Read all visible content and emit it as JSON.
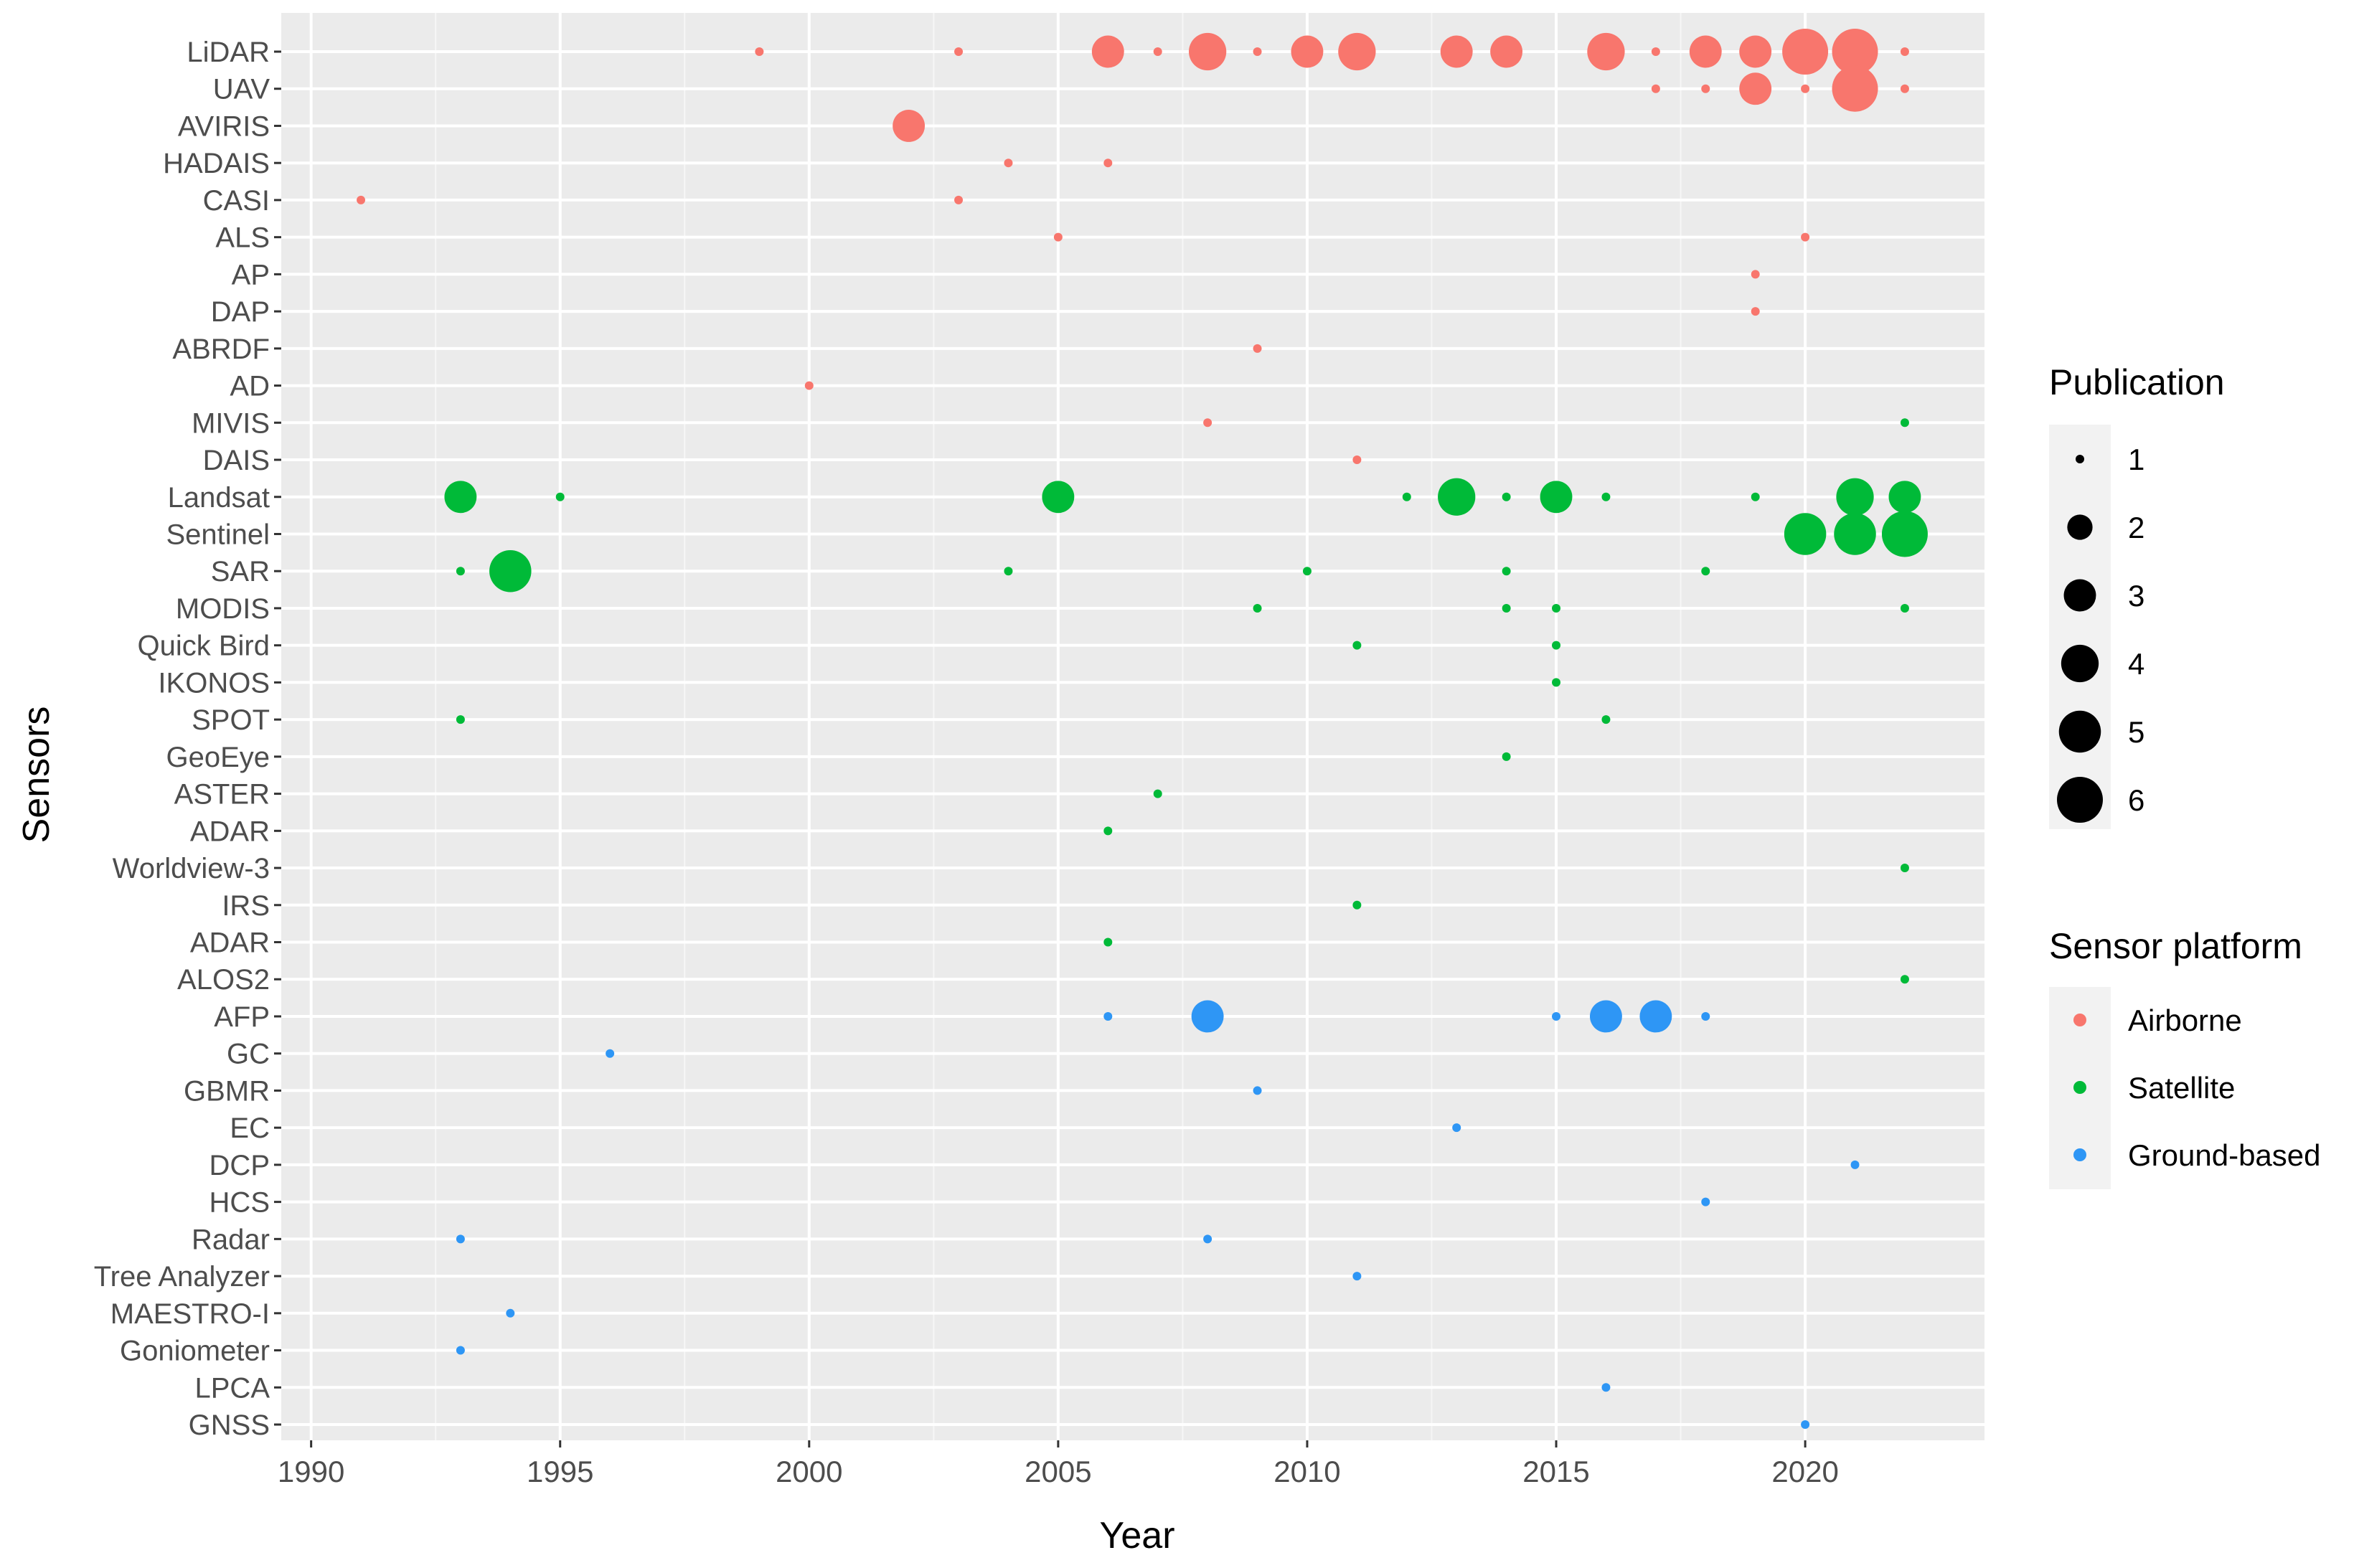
{
  "chart_data": {
    "type": "scatter",
    "xlabel": "Year",
    "ylabel": "Sensors",
    "xlim": [
      1989.4,
      2023.6
    ],
    "x_ticks": [
      1990,
      1995,
      2000,
      2005,
      2010,
      2015,
      2020
    ],
    "x_tick_labels": [
      "1990",
      "1995",
      "2000",
      "2005",
      "2010",
      "2015",
      "2020"
    ],
    "sensors": [
      "LiDAR",
      "UAV",
      "AVIRIS",
      "HADAIS",
      "CASI",
      "ALS",
      "AP",
      "DAP",
      "ABRDF",
      "AD",
      "MIVIS",
      "DAIS",
      "Landsat",
      "Sentinel",
      "SAR",
      "MODIS",
      "Quick Bird",
      "IKONOS",
      "SPOT",
      "GeoEye",
      "ASTER",
      "ADAR",
      "Worldview-3",
      "IRS",
      "ADAR",
      "ALOS2",
      "AFP",
      "GC",
      "GBMR",
      "EC",
      "DCP",
      "HCS",
      "Radar",
      "Tree Analyzer",
      "MAESTRO-I",
      "Goniometer",
      "LPCA",
      "GNSS"
    ],
    "grid": true,
    "legend_placement": "right",
    "size_legend": {
      "title": "Publication",
      "values": [
        1,
        2,
        3,
        4,
        5,
        6
      ],
      "labels": [
        "1",
        "2",
        "3",
        "4",
        "5",
        "6"
      ]
    },
    "color_legend": {
      "title": "Sensor platform",
      "entries": [
        {
          "name": "Airborne",
          "color": "#F8766D"
        },
        {
          "name": "Satellite",
          "color": "#00BA38"
        },
        {
          "name": "Ground-based",
          "color": "#2E96F5"
        }
      ]
    },
    "points": [
      {
        "sensor": 0,
        "year": 1999,
        "count": 1,
        "platform": "Airborne"
      },
      {
        "sensor": 0,
        "year": 2003,
        "count": 1,
        "platform": "Airborne"
      },
      {
        "sensor": 0,
        "year": 2006,
        "count": 3,
        "platform": "Airborne"
      },
      {
        "sensor": 0,
        "year": 2007,
        "count": 1,
        "platform": "Airborne"
      },
      {
        "sensor": 0,
        "year": 2008,
        "count": 4,
        "platform": "Airborne"
      },
      {
        "sensor": 0,
        "year": 2009,
        "count": 1,
        "platform": "Airborne"
      },
      {
        "sensor": 0,
        "year": 2010,
        "count": 3,
        "platform": "Airborne"
      },
      {
        "sensor": 0,
        "year": 2011,
        "count": 4,
        "platform": "Airborne"
      },
      {
        "sensor": 0,
        "year": 2013,
        "count": 3,
        "platform": "Airborne"
      },
      {
        "sensor": 0,
        "year": 2014,
        "count": 3,
        "platform": "Airborne"
      },
      {
        "sensor": 0,
        "year": 2016,
        "count": 4,
        "platform": "Airborne"
      },
      {
        "sensor": 0,
        "year": 2017,
        "count": 1,
        "platform": "Airborne"
      },
      {
        "sensor": 0,
        "year": 2018,
        "count": 3,
        "platform": "Airborne"
      },
      {
        "sensor": 0,
        "year": 2019,
        "count": 3,
        "platform": "Airborne"
      },
      {
        "sensor": 0,
        "year": 2020,
        "count": 6,
        "platform": "Airborne"
      },
      {
        "sensor": 0,
        "year": 2021,
        "count": 6,
        "platform": "Airborne"
      },
      {
        "sensor": 0,
        "year": 2022,
        "count": 1,
        "platform": "Airborne"
      },
      {
        "sensor": 1,
        "year": 2017,
        "count": 1,
        "platform": "Airborne"
      },
      {
        "sensor": 1,
        "year": 2018,
        "count": 1,
        "platform": "Airborne"
      },
      {
        "sensor": 1,
        "year": 2019,
        "count": 3,
        "platform": "Airborne"
      },
      {
        "sensor": 1,
        "year": 2020,
        "count": 1,
        "platform": "Airborne"
      },
      {
        "sensor": 1,
        "year": 2021,
        "count": 6,
        "platform": "Airborne"
      },
      {
        "sensor": 1,
        "year": 2022,
        "count": 1,
        "platform": "Airborne"
      },
      {
        "sensor": 2,
        "year": 2002,
        "count": 3,
        "platform": "Airborne"
      },
      {
        "sensor": 3,
        "year": 2004,
        "count": 1,
        "platform": "Airborne"
      },
      {
        "sensor": 3,
        "year": 2006,
        "count": 1,
        "platform": "Airborne"
      },
      {
        "sensor": 4,
        "year": 1991,
        "count": 1,
        "platform": "Airborne"
      },
      {
        "sensor": 4,
        "year": 2003,
        "count": 1,
        "platform": "Airborne"
      },
      {
        "sensor": 5,
        "year": 2005,
        "count": 1,
        "platform": "Airborne"
      },
      {
        "sensor": 5,
        "year": 2020,
        "count": 1,
        "platform": "Airborne"
      },
      {
        "sensor": 6,
        "year": 2019,
        "count": 1,
        "platform": "Airborne"
      },
      {
        "sensor": 7,
        "year": 2019,
        "count": 1,
        "platform": "Airborne"
      },
      {
        "sensor": 8,
        "year": 2009,
        "count": 1,
        "platform": "Airborne"
      },
      {
        "sensor": 9,
        "year": 2000,
        "count": 1,
        "platform": "Airborne"
      },
      {
        "sensor": 10,
        "year": 2008,
        "count": 1,
        "platform": "Airborne"
      },
      {
        "sensor": 10,
        "year": 2022,
        "count": 1,
        "platform": "Satellite"
      },
      {
        "sensor": 11,
        "year": 2011,
        "count": 1,
        "platform": "Airborne"
      },
      {
        "sensor": 12,
        "year": 1993,
        "count": 3,
        "platform": "Satellite"
      },
      {
        "sensor": 12,
        "year": 1995,
        "count": 1,
        "platform": "Satellite"
      },
      {
        "sensor": 12,
        "year": 2005,
        "count": 3,
        "platform": "Satellite"
      },
      {
        "sensor": 12,
        "year": 2012,
        "count": 1,
        "platform": "Satellite"
      },
      {
        "sensor": 12,
        "year": 2013,
        "count": 4,
        "platform": "Satellite"
      },
      {
        "sensor": 12,
        "year": 2014,
        "count": 1,
        "platform": "Satellite"
      },
      {
        "sensor": 12,
        "year": 2015,
        "count": 3,
        "platform": "Satellite"
      },
      {
        "sensor": 12,
        "year": 2016,
        "count": 1,
        "platform": "Satellite"
      },
      {
        "sensor": 12,
        "year": 2019,
        "count": 1,
        "platform": "Satellite"
      },
      {
        "sensor": 12,
        "year": 2021,
        "count": 4,
        "platform": "Satellite"
      },
      {
        "sensor": 12,
        "year": 2022,
        "count": 3,
        "platform": "Satellite"
      },
      {
        "sensor": 13,
        "year": 2020,
        "count": 5,
        "platform": "Satellite"
      },
      {
        "sensor": 13,
        "year": 2021,
        "count": 5,
        "platform": "Satellite"
      },
      {
        "sensor": 13,
        "year": 2022,
        "count": 6,
        "platform": "Satellite"
      },
      {
        "sensor": 14,
        "year": 1993,
        "count": 1,
        "platform": "Satellite"
      },
      {
        "sensor": 14,
        "year": 1994,
        "count": 5,
        "platform": "Satellite"
      },
      {
        "sensor": 14,
        "year": 2004,
        "count": 1,
        "platform": "Satellite"
      },
      {
        "sensor": 14,
        "year": 2010,
        "count": 1,
        "platform": "Satellite"
      },
      {
        "sensor": 14,
        "year": 2014,
        "count": 1,
        "platform": "Satellite"
      },
      {
        "sensor": 14,
        "year": 2018,
        "count": 1,
        "platform": "Satellite"
      },
      {
        "sensor": 15,
        "year": 2009,
        "count": 1,
        "platform": "Satellite"
      },
      {
        "sensor": 15,
        "year": 2014,
        "count": 1,
        "platform": "Satellite"
      },
      {
        "sensor": 15,
        "year": 2015,
        "count": 1,
        "platform": "Satellite"
      },
      {
        "sensor": 15,
        "year": 2022,
        "count": 1,
        "platform": "Satellite"
      },
      {
        "sensor": 16,
        "year": 2011,
        "count": 1,
        "platform": "Satellite"
      },
      {
        "sensor": 16,
        "year": 2015,
        "count": 1,
        "platform": "Satellite"
      },
      {
        "sensor": 17,
        "year": 2015,
        "count": 1,
        "platform": "Satellite"
      },
      {
        "sensor": 18,
        "year": 1993,
        "count": 1,
        "platform": "Satellite"
      },
      {
        "sensor": 18,
        "year": 2016,
        "count": 1,
        "platform": "Satellite"
      },
      {
        "sensor": 19,
        "year": 2014,
        "count": 1,
        "platform": "Satellite"
      },
      {
        "sensor": 20,
        "year": 2007,
        "count": 1,
        "platform": "Satellite"
      },
      {
        "sensor": 21,
        "year": 2006,
        "count": 1,
        "platform": "Satellite"
      },
      {
        "sensor": 22,
        "year": 2022,
        "count": 1,
        "platform": "Satellite"
      },
      {
        "sensor": 23,
        "year": 2011,
        "count": 1,
        "platform": "Satellite"
      },
      {
        "sensor": 24,
        "year": 2006,
        "count": 1,
        "platform": "Satellite"
      },
      {
        "sensor": 25,
        "year": 2022,
        "count": 1,
        "platform": "Satellite"
      },
      {
        "sensor": 26,
        "year": 2006,
        "count": 1,
        "platform": "Ground-based"
      },
      {
        "sensor": 26,
        "year": 2008,
        "count": 3,
        "platform": "Ground-based"
      },
      {
        "sensor": 26,
        "year": 2015,
        "count": 1,
        "platform": "Ground-based"
      },
      {
        "sensor": 26,
        "year": 2016,
        "count": 3,
        "platform": "Ground-based"
      },
      {
        "sensor": 26,
        "year": 2017,
        "count": 3,
        "platform": "Ground-based"
      },
      {
        "sensor": 26,
        "year": 2018,
        "count": 1,
        "platform": "Ground-based"
      },
      {
        "sensor": 27,
        "year": 1996,
        "count": 1,
        "platform": "Ground-based"
      },
      {
        "sensor": 28,
        "year": 2009,
        "count": 1,
        "platform": "Ground-based"
      },
      {
        "sensor": 29,
        "year": 2013,
        "count": 1,
        "platform": "Ground-based"
      },
      {
        "sensor": 30,
        "year": 2021,
        "count": 1,
        "platform": "Ground-based"
      },
      {
        "sensor": 31,
        "year": 2018,
        "count": 1,
        "platform": "Ground-based"
      },
      {
        "sensor": 32,
        "year": 1993,
        "count": 1,
        "platform": "Ground-based"
      },
      {
        "sensor": 32,
        "year": 2008,
        "count": 1,
        "platform": "Ground-based"
      },
      {
        "sensor": 33,
        "year": 2011,
        "count": 1,
        "platform": "Ground-based"
      },
      {
        "sensor": 34,
        "year": 1994,
        "count": 1,
        "platform": "Ground-based"
      },
      {
        "sensor": 35,
        "year": 1993,
        "count": 1,
        "platform": "Ground-based"
      },
      {
        "sensor": 36,
        "year": 2016,
        "count": 1,
        "platform": "Ground-based"
      },
      {
        "sensor": 37,
        "year": 2020,
        "count": 1,
        "platform": "Ground-based"
      }
    ]
  }
}
